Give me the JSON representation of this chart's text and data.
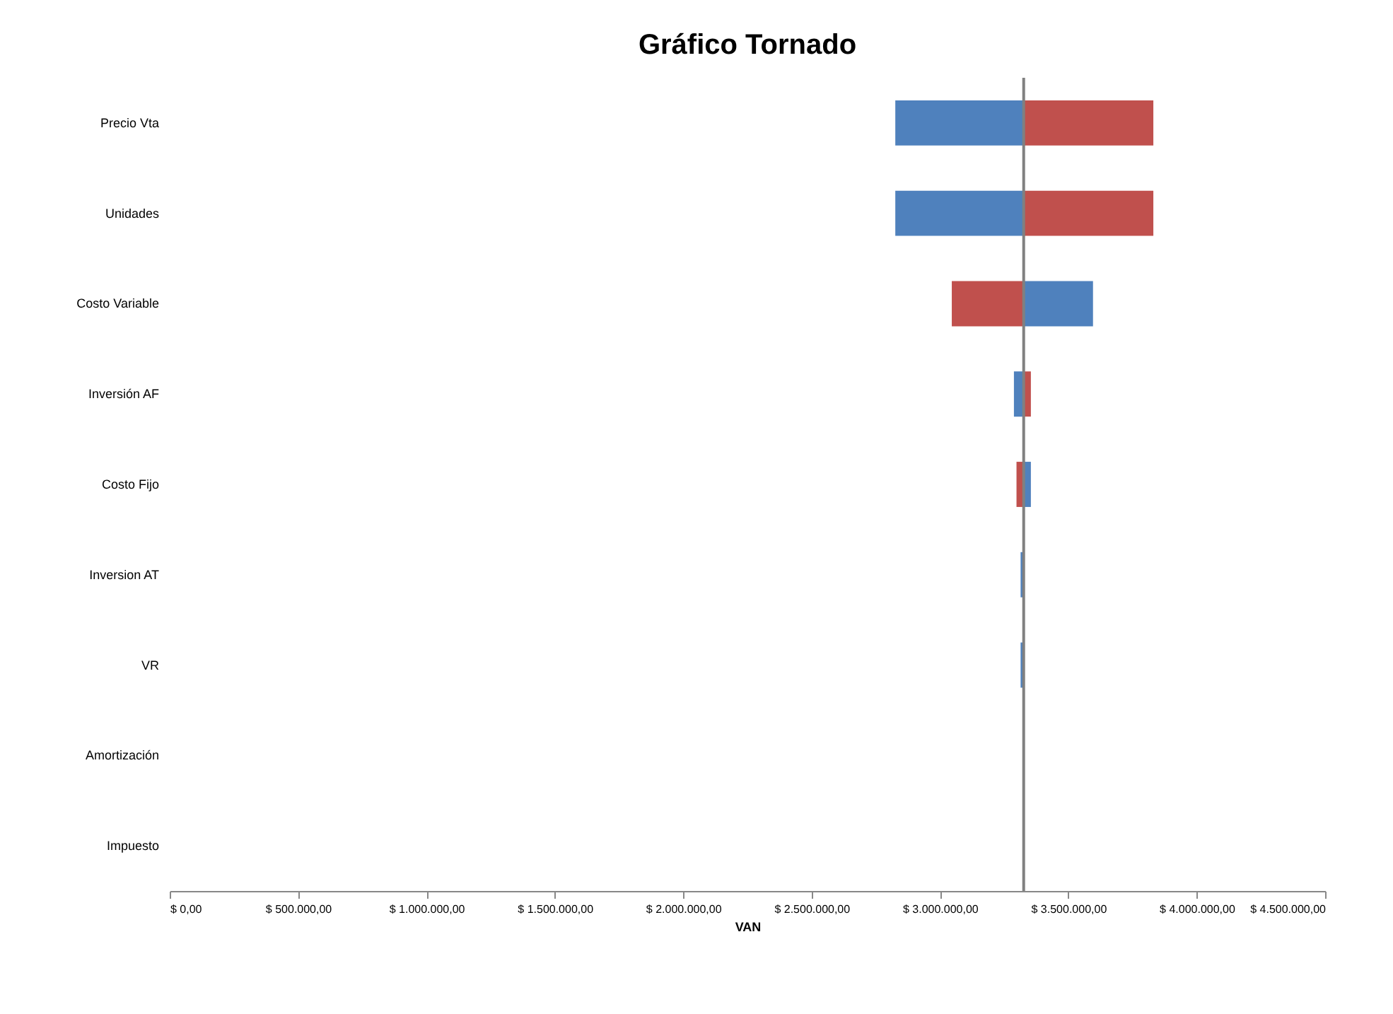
{
  "chart_data": {
    "type": "bar",
    "orientation": "horizontal",
    "title": "Gráfico Tornado",
    "xlabel": "VAN",
    "categories": [
      "Precio Vta",
      "Unidades",
      "Costo Variable",
      "Inversión AF",
      "Costo Fijo",
      "Inversion AT",
      "VR",
      "Amortización",
      "Impuesto"
    ],
    "series": [
      {
        "color": "#4f81bd",
        "base": [
          3326000,
          3326000,
          3326000,
          3326000,
          3326000,
          3326000,
          3326000,
          null,
          null
        ],
        "values": [
          -500000,
          -500000,
          270000,
          -38000,
          28000,
          -12000,
          -12000,
          null,
          null
        ]
      },
      {
        "color": "#c0504d",
        "base": [
          3326000,
          3326000,
          3326000,
          3326000,
          3326000,
          null,
          null,
          null,
          null
        ],
        "values": [
          505000,
          505000,
          -280000,
          28000,
          -28000,
          null,
          null,
          null,
          null
        ]
      }
    ],
    "xlim": [
      0,
      4500000
    ],
    "xticks": [
      {
        "value": 0,
        "label": "$ 0,00"
      },
      {
        "value": 500000,
        "label": "$ 500.000,00"
      },
      {
        "value": 1000000,
        "label": "$ 1.000.000,00"
      },
      {
        "value": 1500000,
        "label": "$ 1.500.000,00"
      },
      {
        "value": 2000000,
        "label": "$ 2.000.000,00"
      },
      {
        "value": 2500000,
        "label": "$ 2.500.000,00"
      },
      {
        "value": 3000000,
        "label": "$ 3.000.000,00"
      },
      {
        "value": 3500000,
        "label": "$ 3.500.000,00"
      },
      {
        "value": 4000000,
        "label": "$ 4.000.000,00"
      },
      {
        "value": 4500000,
        "label": "$ 4.500.000,00"
      }
    ],
    "ref_lines": [
      {
        "axis": "x",
        "value": 3326000,
        "color": "#808080"
      }
    ],
    "grid": false,
    "legend": false
  }
}
